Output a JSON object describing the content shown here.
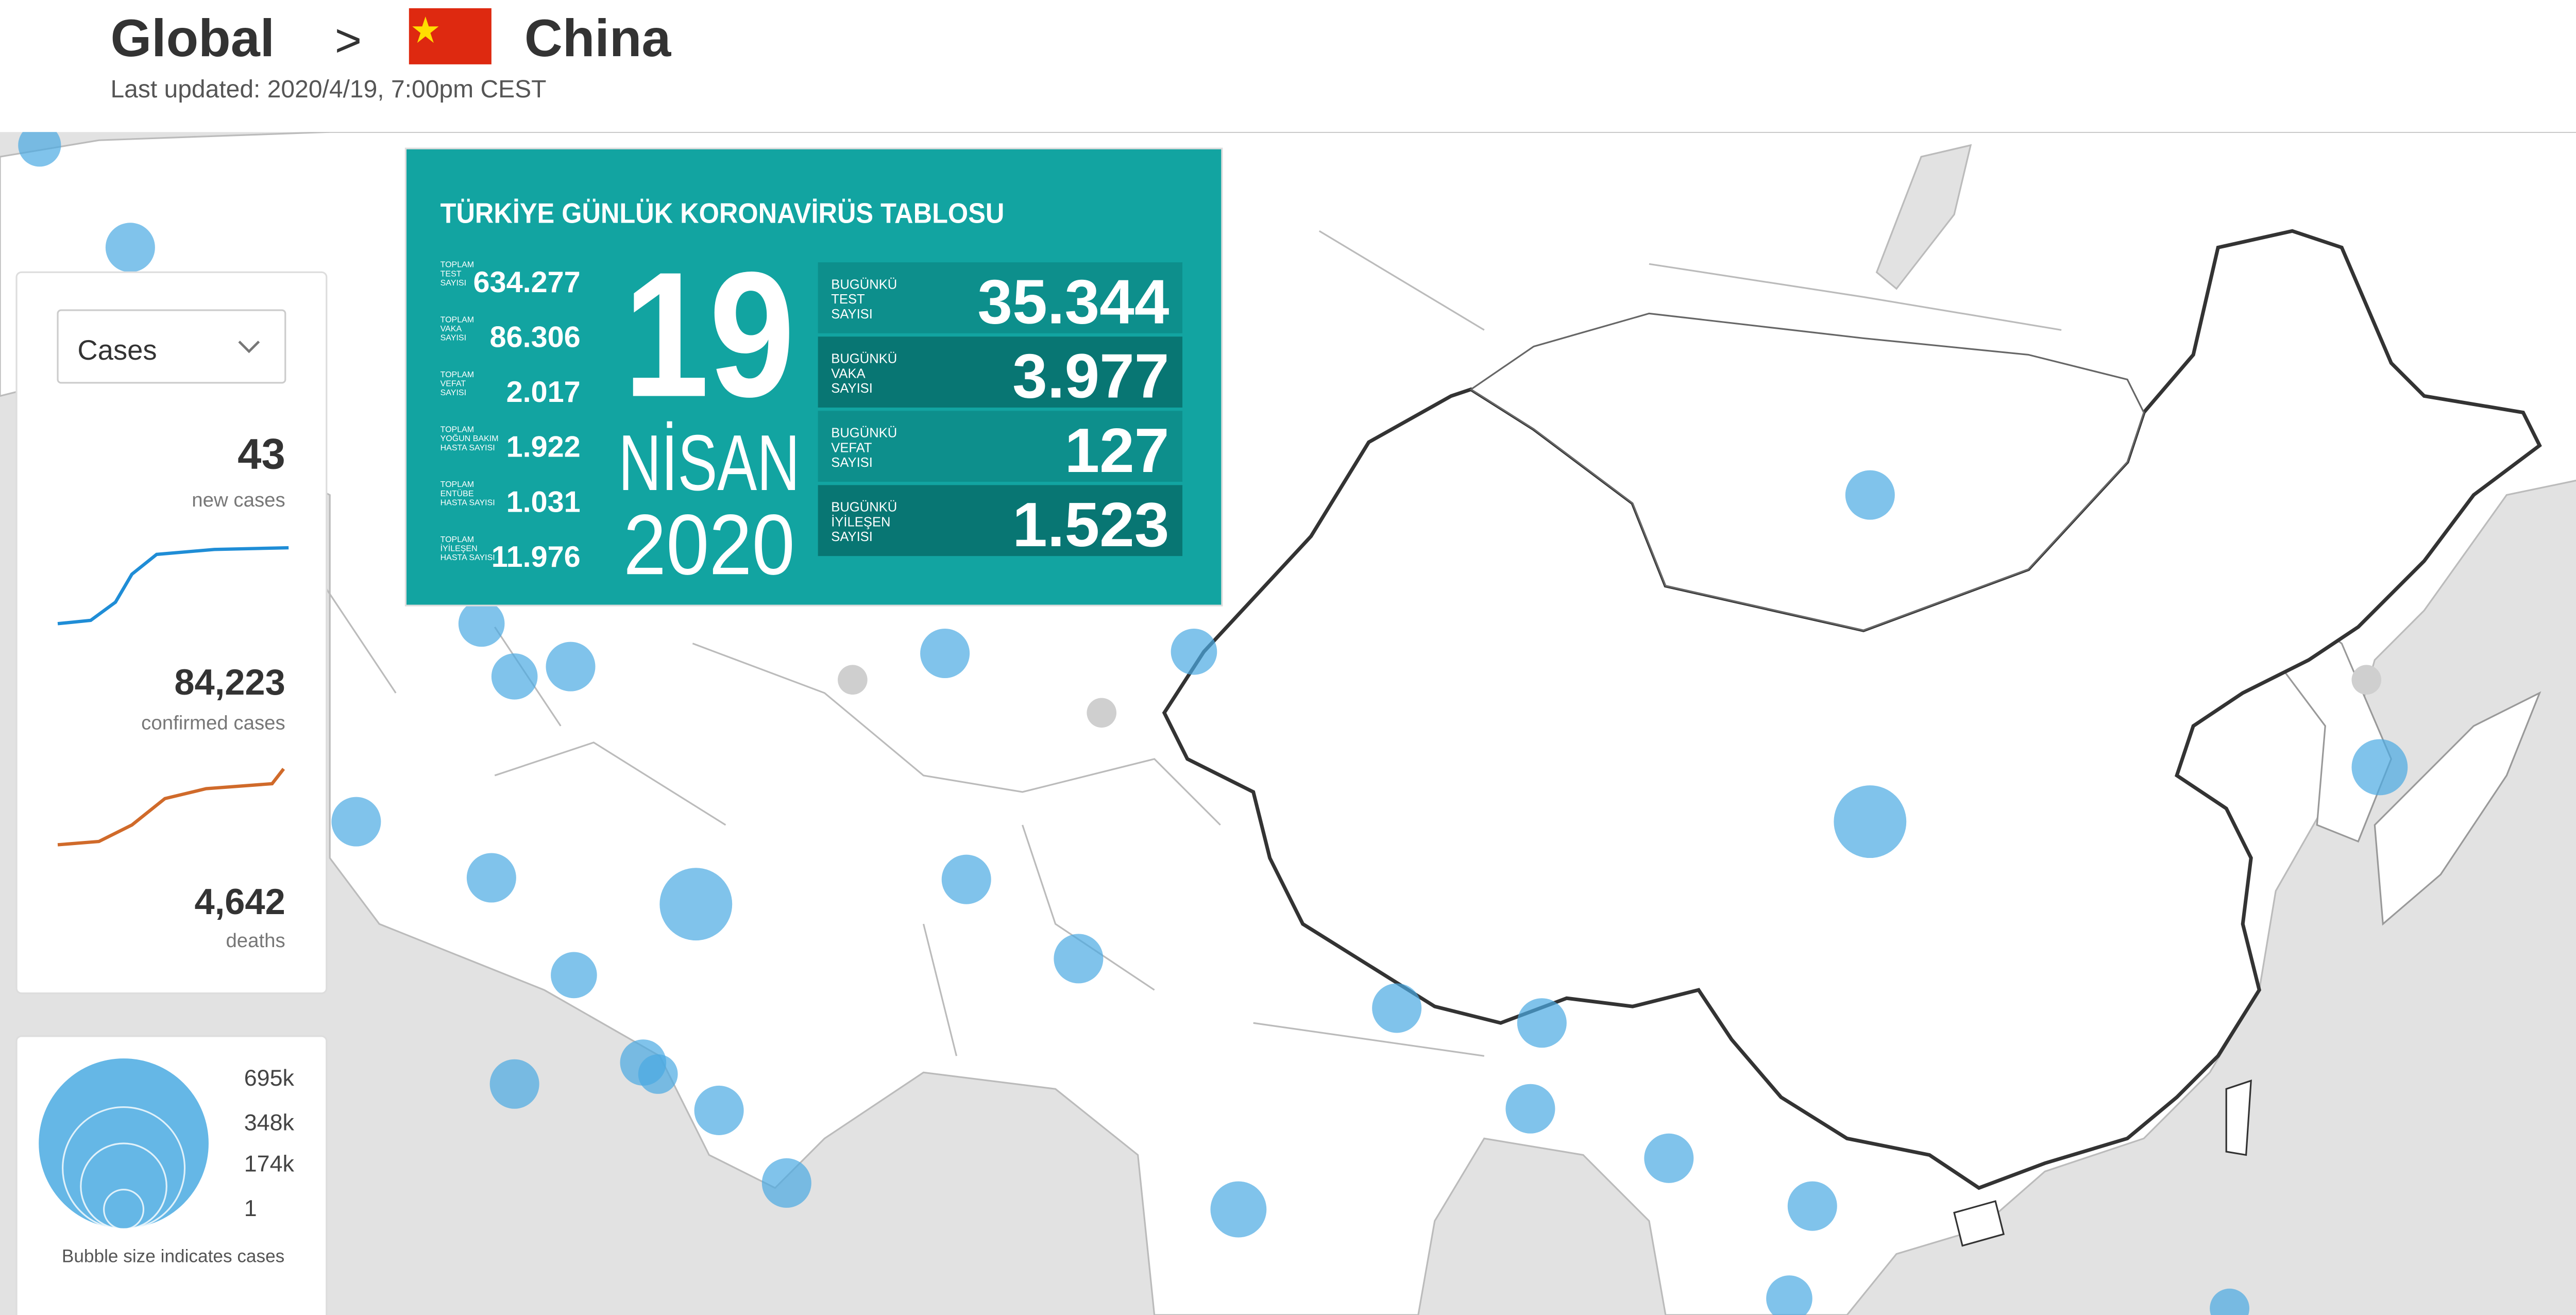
{
  "header": {
    "root": "Global",
    "separator": ">",
    "country": "China",
    "last_updated": "Last updated: 2020/4/19, 7:00pm CEST"
  },
  "panel": {
    "dropdown": "Cases",
    "stats": [
      {
        "value": "43",
        "label": "new cases"
      },
      {
        "value": "84,223",
        "label": "confirmed cases"
      },
      {
        "value": "4,642",
        "label": "deaths"
      }
    ]
  },
  "legend": {
    "ticks": [
      "695k",
      "348k",
      "174k",
      "1"
    ],
    "caption": "Bubble size indicates cases"
  },
  "infographic": {
    "title": "TÜRKİYE GÜNLÜK KORONAVİRÜS TABLOSU",
    "totals": [
      {
        "label": [
          "TOPLAM",
          "TEST",
          "SAYISI"
        ],
        "value": "634.277"
      },
      {
        "label": [
          "TOPLAM",
          "VAKA",
          "SAYISI"
        ],
        "value": "86.306"
      },
      {
        "label": [
          "TOPLAM",
          "VEFAT",
          "SAYISI"
        ],
        "value": "2.017"
      },
      {
        "label": [
          "TOPLAM",
          "YOĞUN BAKIM",
          "HASTA SAYISI"
        ],
        "value": "1.922"
      },
      {
        "label": [
          "TOPLAM",
          "ENTÜBE",
          "HASTA SAYISI"
        ],
        "value": "1.031"
      },
      {
        "label": [
          "TOPLAM",
          "İYİLEŞEN",
          "HASTA SAYISI"
        ],
        "value": "11.976"
      }
    ],
    "date": {
      "day": "19",
      "month": "NİSAN",
      "year": "2020"
    },
    "today": [
      {
        "label": [
          "BUGÜNKÜ",
          "TEST",
          "SAYISI"
        ],
        "value": "35.344"
      },
      {
        "label": [
          "BUGÜNKÜ",
          "VAKA",
          "SAYISI"
        ],
        "value": "3.977"
      },
      {
        "label": [
          "BUGÜNKÜ",
          "VEFAT",
          "SAYISI"
        ],
        "value": "127"
      },
      {
        "label": [
          "BUGÜNKÜ",
          "İYİLEŞEN",
          "SAYISI"
        ],
        "value": "1.523"
      }
    ]
  }
}
